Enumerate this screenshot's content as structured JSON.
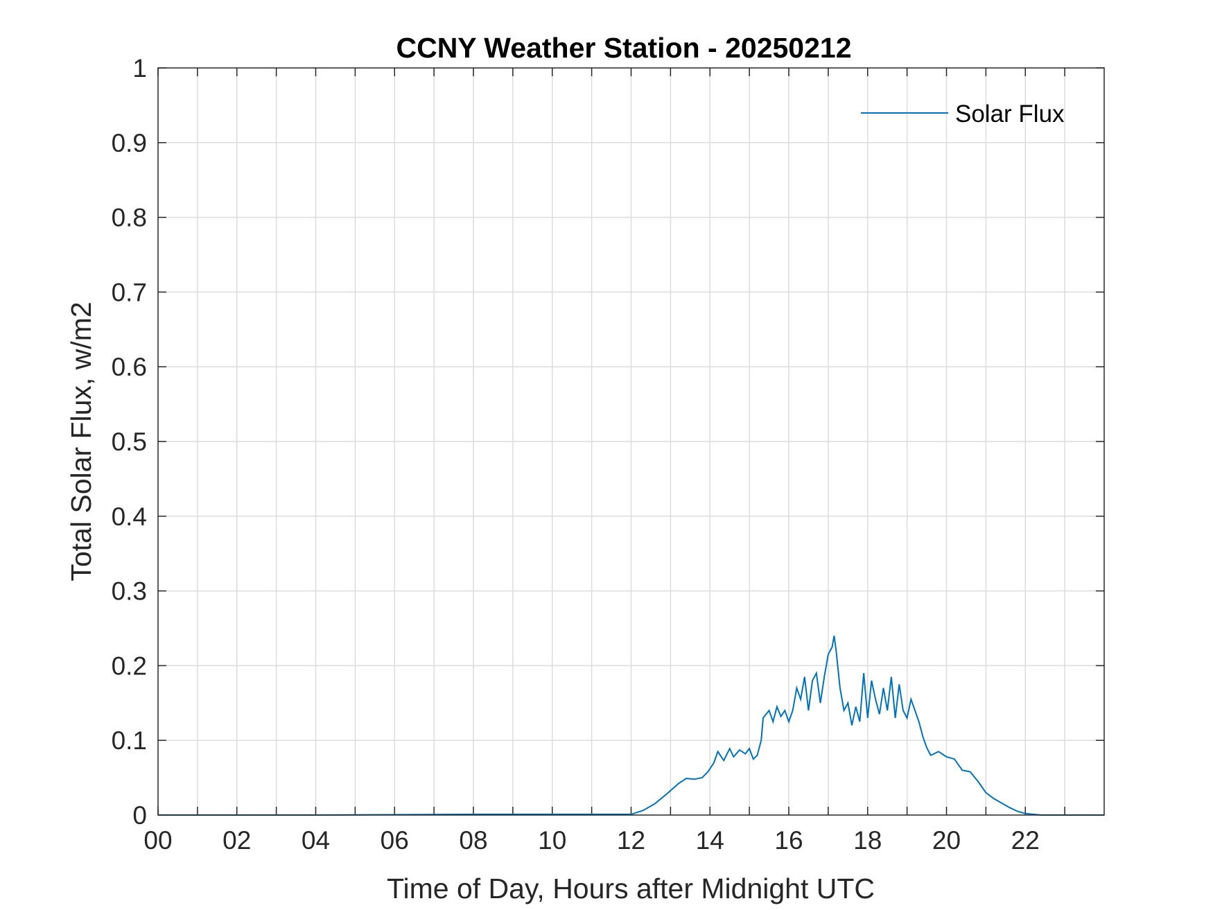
{
  "chart_data": {
    "type": "line",
    "title": "CCNY Weather Station - 20250212",
    "xlabel": "Time of Day, Hours after Midnight UTC",
    "ylabel": "Total Solar Flux, w/m2",
    "xlim": [
      0,
      24
    ],
    "ylim": [
      0,
      1
    ],
    "grid": true,
    "legend_position": "top-right",
    "x_ticks": [
      0,
      2,
      4,
      6,
      8,
      10,
      12,
      14,
      16,
      18,
      20,
      22
    ],
    "x_tick_labels": [
      "00",
      "02",
      "04",
      "06",
      "08",
      "10",
      "12",
      "14",
      "16",
      "18",
      "20",
      "22"
    ],
    "x_minor_grid": [
      1,
      3,
      5,
      7,
      9,
      11,
      13,
      15,
      17,
      19,
      21,
      23
    ],
    "y_ticks": [
      0,
      0.1,
      0.2,
      0.3,
      0.4,
      0.5,
      0.6,
      0.7,
      0.8,
      0.9,
      1
    ],
    "y_tick_labels": [
      "0",
      "0.1",
      "0.2",
      "0.3",
      "0.4",
      "0.5",
      "0.6",
      "0.7",
      "0.8",
      "0.9",
      "1"
    ],
    "series": [
      {
        "name": "Solar Flux",
        "color": "#0072BD",
        "x": [
          0,
          4,
          8,
          10,
          12,
          12.3,
          12.6,
          12.9,
          13.2,
          13.4,
          13.6,
          13.8,
          13.95,
          14.1,
          14.2,
          14.35,
          14.5,
          14.6,
          14.75,
          14.9,
          15,
          15.1,
          15.2,
          15.3,
          15.35,
          15.5,
          15.6,
          15.7,
          15.8,
          15.9,
          16,
          16.1,
          16.2,
          16.3,
          16.4,
          16.5,
          16.6,
          16.7,
          16.8,
          16.9,
          17,
          17.1,
          17.15,
          17.2,
          17.3,
          17.4,
          17.5,
          17.6,
          17.7,
          17.8,
          17.9,
          18,
          18.1,
          18.2,
          18.3,
          18.4,
          18.5,
          18.6,
          18.7,
          18.8,
          18.9,
          19,
          19.1,
          19.2,
          19.3,
          19.4,
          19.5,
          19.6,
          19.8,
          20,
          20.2,
          20.4,
          20.6,
          20.8,
          21,
          21.2,
          21.4,
          21.6,
          21.8,
          22,
          22.2,
          22.4,
          22.6,
          23,
          24
        ],
        "y": [
          0,
          0,
          0.001,
          0.001,
          0.001,
          0.006,
          0.015,
          0.028,
          0.042,
          0.049,
          0.048,
          0.05,
          0.058,
          0.07,
          0.085,
          0.073,
          0.089,
          0.078,
          0.087,
          0.082,
          0.089,
          0.075,
          0.08,
          0.1,
          0.13,
          0.14,
          0.125,
          0.145,
          0.132,
          0.14,
          0.125,
          0.14,
          0.17,
          0.155,
          0.185,
          0.14,
          0.18,
          0.19,
          0.15,
          0.185,
          0.215,
          0.225,
          0.24,
          0.22,
          0.17,
          0.14,
          0.15,
          0.12,
          0.145,
          0.125,
          0.19,
          0.13,
          0.18,
          0.155,
          0.135,
          0.17,
          0.14,
          0.185,
          0.13,
          0.175,
          0.14,
          0.13,
          0.155,
          0.14,
          0.125,
          0.105,
          0.09,
          0.08,
          0.085,
          0.078,
          0.075,
          0.06,
          0.058,
          0.045,
          0.03,
          0.022,
          0.016,
          0.01,
          0.005,
          0.002,
          0.001,
          0,
          0,
          0,
          0
        ]
      }
    ]
  }
}
